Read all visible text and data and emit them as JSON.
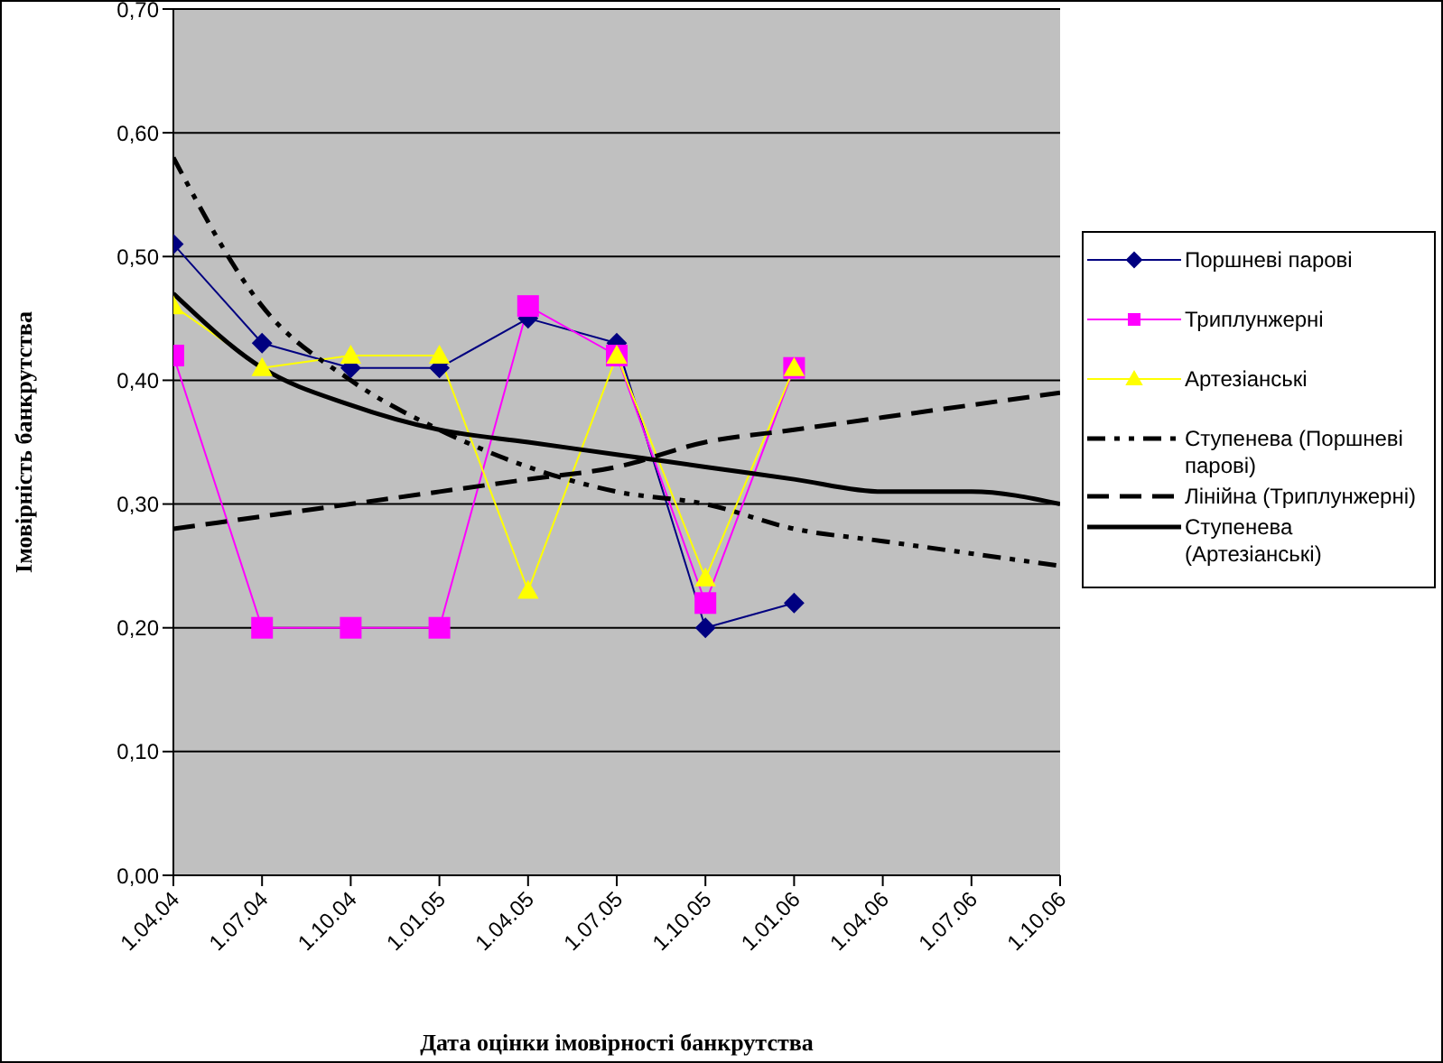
{
  "chart_data": {
    "type": "line",
    "xlabel": "Дата оцінки імовірності банкрутства",
    "ylabel": "Імовірність банкрутства",
    "categories": [
      "1.04.04",
      "1.07.04",
      "1.10.04",
      "1.01.05",
      "1.04.05",
      "1.07.05",
      "1.10.05",
      "1.01.06",
      "1.04.06",
      "1.07.06",
      "1.10.06"
    ],
    "ylim": [
      0,
      0.7
    ],
    "yticks": [
      {
        "value": 0,
        "label": "0,00"
      },
      {
        "value": 0.1,
        "label": "0,10"
      },
      {
        "value": 0.2,
        "label": "0,20"
      },
      {
        "value": 0.3,
        "label": "0,30"
      },
      {
        "value": 0.4,
        "label": "0,40"
      },
      {
        "value": 0.5,
        "label": "0,50"
      },
      {
        "value": 0.6,
        "label": "0,60"
      },
      {
        "value": 0.7,
        "label": "0,70"
      }
    ],
    "grid": "y",
    "legend": "right",
    "series": [
      {
        "name": "Поршневі парові",
        "color": "#000080",
        "marker": "diamond",
        "line_style": "solid",
        "values": [
          0.51,
          0.43,
          0.41,
          0.41,
          0.45,
          0.43,
          0.2,
          0.22,
          null,
          null,
          null
        ]
      },
      {
        "name": "Триплунжерні",
        "color": "#ff00ff",
        "marker": "square",
        "line_style": "solid",
        "values": [
          0.42,
          0.2,
          0.2,
          0.2,
          0.46,
          0.42,
          0.22,
          0.41,
          null,
          null,
          null
        ]
      },
      {
        "name": "Артезіанські",
        "color": "#ffff00",
        "marker": "triangle",
        "line_style": "solid",
        "values": [
          0.46,
          0.41,
          0.42,
          0.42,
          0.23,
          0.42,
          0.24,
          0.41,
          null,
          null,
          null
        ]
      },
      {
        "name": "Ступенева (Поршневі парові)",
        "color": "#000000",
        "marker": "none",
        "line_style": "dotted",
        "values": [
          0.58,
          0.46,
          0.4,
          0.36,
          0.33,
          0.31,
          0.3,
          0.28,
          0.27,
          0.26,
          0.25
        ]
      },
      {
        "name": "Лінійна (Триплунжерні)",
        "color": "#000000",
        "marker": "none",
        "line_style": "dashed",
        "values": [
          0.28,
          0.29,
          0.3,
          0.31,
          0.32,
          0.33,
          0.35,
          0.36,
          0.37,
          0.38,
          0.39
        ]
      },
      {
        "name": "Ступенева (Артезіанські)",
        "color": "#000000",
        "marker": "none",
        "line_style": "solid",
        "values": [
          0.47,
          0.41,
          0.38,
          0.36,
          0.35,
          0.34,
          0.33,
          0.32,
          0.31,
          0.31,
          0.3
        ]
      }
    ]
  }
}
